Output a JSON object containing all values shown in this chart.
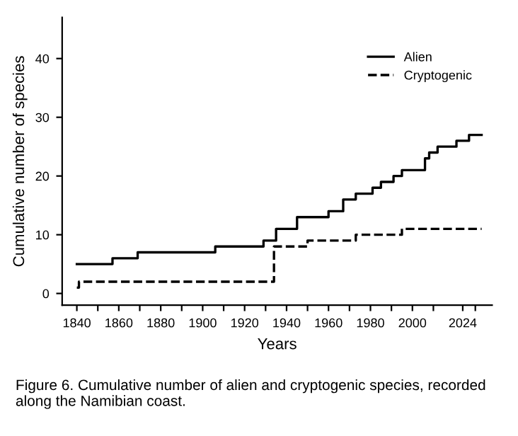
{
  "chart_data": {
    "type": "step",
    "xlabel": "Years",
    "ylabel": "Cumulative number of species",
    "annotations": [
      "Figure 6. Cumulative number of alien and cryptogenic species, recorded along the Namibian coast."
    ],
    "series": [
      {
        "name": "Alien",
        "color": "#000000",
        "line_style": "solid",
        "x": [
          1840,
          1857,
          1869,
          1906,
          1929,
          1931,
          1935,
          1945,
          1960,
          1967,
          1973,
          1981,
          1985,
          1991,
          1995,
          2006,
          2008,
          2012,
          2021,
          2027,
          2033
        ],
        "values": [
          5,
          6,
          7,
          8,
          9,
          9,
          11,
          13,
          14,
          16,
          17,
          18,
          19,
          20,
          21,
          23,
          24,
          25,
          26,
          27,
          27
        ]
      },
      {
        "name": "Cryptogenic",
        "color": "#000000",
        "line_style": "dashed",
        "x": [
          1840,
          1841,
          1934,
          1950,
          1973,
          1995,
          2033
        ],
        "values": [
          1,
          2,
          8,
          9,
          10,
          11,
          11
        ]
      }
    ],
    "xlim": [
      1833,
      2038
    ],
    "ylim": [
      -2,
      47
    ],
    "xticks": [
      1840,
      {
        "value": 1850,
        "label": null
      },
      1860,
      {
        "value": 1870,
        "label": null
      },
      1880,
      {
        "value": 1890,
        "label": null
      },
      1900,
      {
        "value": 1910,
        "label": null
      },
      1920,
      {
        "value": 1930,
        "label": null
      },
      1940,
      {
        "value": 1950,
        "label": null
      },
      1960,
      {
        "value": 1970,
        "label": null
      },
      1980,
      {
        "value": 1990,
        "label": null
      },
      2000,
      {
        "value": 2010,
        "label": null
      },
      2024,
      {
        "value": 2030,
        "label": null
      }
    ],
    "yticks": [
      0,
      10,
      20,
      30,
      40
    ],
    "grid": false,
    "legend": "top right"
  }
}
